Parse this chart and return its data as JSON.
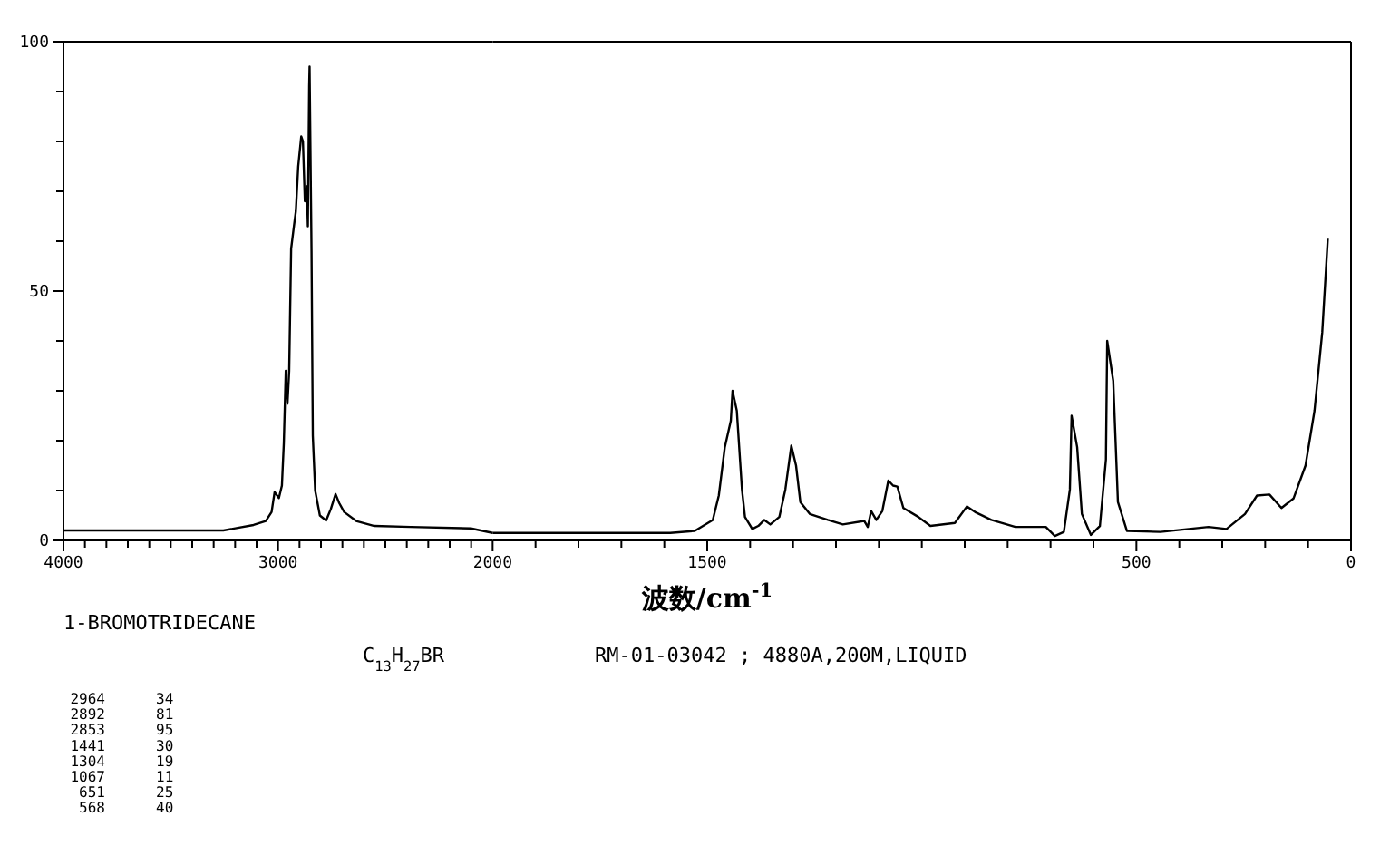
{
  "chart_data": [
    {
      "type": "line",
      "title": "1-BROMOTRIDECANE",
      "subtitle": "C$_{13}$H$_{27}$BR",
      "annotations": [
        "RM-01-03042 ; 4880A,200M,LIQUID",
        "2964 34",
        "2892 81",
        "2853 95",
        "1441 30",
        "1304 19",
        "1067 11",
        "651 25",
        "568 40"
      ],
      "xlim": [
        4000,
        2000
      ],
      "ylim": [
        0,
        100
      ],
      "xticks": [
        4000,
        {
          "value": 3900,
          "label": null
        },
        {
          "value": 3800,
          "label": null
        },
        {
          "value": 3700,
          "label": null
        },
        {
          "value": 3600,
          "label": null
        },
        {
          "value": 3500,
          "label": null
        },
        {
          "value": 3400,
          "label": null
        },
        {
          "value": 3300,
          "label": null
        },
        {
          "value": 3200,
          "label": null
        },
        {
          "value": 3100,
          "label": null
        },
        3000,
        {
          "value": 2900,
          "label": null
        },
        {
          "value": 2800,
          "label": null
        },
        {
          "value": 2700,
          "label": null
        },
        {
          "value": 2600,
          "label": null
        },
        {
          "value": 2500,
          "label": null
        },
        {
          "value": 2400,
          "label": null
        },
        {
          "value": 2300,
          "label": null
        },
        {
          "value": 2200,
          "label": null
        },
        {
          "value": 2100,
          "label": null
        }
      ],
      "yticks": [
        0,
        {
          "value": 10,
          "label": null
        },
        {
          "value": 20,
          "label": null
        },
        {
          "value": 30,
          "label": null
        },
        {
          "value": 40,
          "label": null
        },
        50,
        {
          "value": 60,
          "label": null
        },
        {
          "value": 70,
          "label": null
        },
        {
          "value": 80,
          "label": null
        },
        {
          "value": 90,
          "label": null
        },
        100
      ],
      "grid": false,
      "marker": "none",
      "line_style": "solid",
      "x": [
        4000,
        3255,
        3114,
        3057,
        3030,
        3016,
        2996,
        2982,
        2973,
        2964,
        2956,
        2948,
        2939,
        2926,
        2917,
        2906,
        2892,
        2884,
        2875,
        2866,
        2861,
        2855,
        2853,
        2844,
        2838,
        2827,
        2805,
        2776,
        2754,
        2732,
        2715,
        2692,
        2636,
        2551,
        2382,
        2101,
        2000
      ],
      "series": [
        {
          "color": "#000000",
          "values": [
            2,
            2,
            3.1,
            3.9,
            5.7,
            9.7,
            8.5,
            11,
            19.6,
            34,
            27.4,
            34,
            58.5,
            63,
            66,
            75,
            81,
            80,
            68,
            71,
            63,
            91,
            95,
            58,
            21,
            10,
            5,
            4,
            6.3,
            9.3,
            7.5,
            5.7,
            3.9,
            2.9,
            2.7,
            2.4,
            1.5
          ]
        }
      ]
    },
    {
      "type": "line",
      "xlabel": "波数/cm$^{-1}$",
      "xlim": [
        2000,
        0
      ],
      "ylim": [
        0,
        100
      ],
      "tick_labels": "x",
      "xticks": [
        2000,
        {
          "value": 1900,
          "label": null
        },
        {
          "value": 1800,
          "label": null
        },
        {
          "value": 1700,
          "label": null
        },
        {
          "value": 1600,
          "label": null
        },
        1500,
        {
          "value": 1400,
          "label": null
        },
        {
          "value": 1300,
          "label": null
        },
        {
          "value": 1200,
          "label": null
        },
        {
          "value": 1100,
          "label": null
        },
        {
          "value": 1000,
          "label": null
        },
        {
          "value": 900,
          "label": null
        },
        {
          "value": 800,
          "label": null
        },
        {
          "value": 700,
          "label": null
        },
        {
          "value": 600,
          "label": null
        },
        500,
        {
          "value": 400,
          "label": null
        },
        {
          "value": 300,
          "label": null
        },
        {
          "value": 200,
          "label": null
        },
        {
          "value": 100,
          "label": null
        },
        0
      ],
      "grid": false,
      "marker": "none",
      "line_style": "solid",
      "x": [
        2000,
        1586,
        1529,
        1487,
        1473,
        1459,
        1445,
        1441,
        1431,
        1419,
        1412,
        1395,
        1381,
        1367,
        1353,
        1332,
        1318,
        1304,
        1293,
        1283,
        1261,
        1219,
        1184,
        1134,
        1126,
        1118,
        1106,
        1092,
        1078,
        1067,
        1057,
        1043,
        1008,
        980,
        923,
        895,
        874,
        838,
        782,
        711,
        690,
        669,
        655,
        651,
        638,
        627,
        606,
        585,
        571,
        568,
        554,
        543,
        522,
        444,
        332,
        290,
        247,
        219,
        190,
        162,
        134,
        106,
        85,
        67,
        54
      ],
      "series": [
        {
          "color": "#000000",
          "values": [
            1.5,
            1.5,
            1.9,
            4.1,
            9,
            18.7,
            24,
            30,
            26,
            10.2,
            4.7,
            2.3,
            2.9,
            4.1,
            3.2,
            4.7,
            10.2,
            19,
            15,
            7.7,
            5.3,
            4.1,
            3.2,
            3.9,
            2.7,
            5.9,
            4.1,
            5.9,
            12,
            11,
            10.8,
            6.5,
            4.7,
            2.9,
            3.5,
            6.8,
            5.6,
            4.1,
            2.7,
            2.7,
            0.9,
            1.7,
            10.2,
            25,
            18.7,
            5.3,
            1.1,
            2.9,
            16.2,
            40,
            32,
            7.7,
            1.9,
            1.7,
            2.7,
            2.3,
            5.3,
            9,
            9.2,
            6.5,
            8.4,
            15,
            26,
            41.7,
            60.5
          ]
        }
      ]
    }
  ]
}
